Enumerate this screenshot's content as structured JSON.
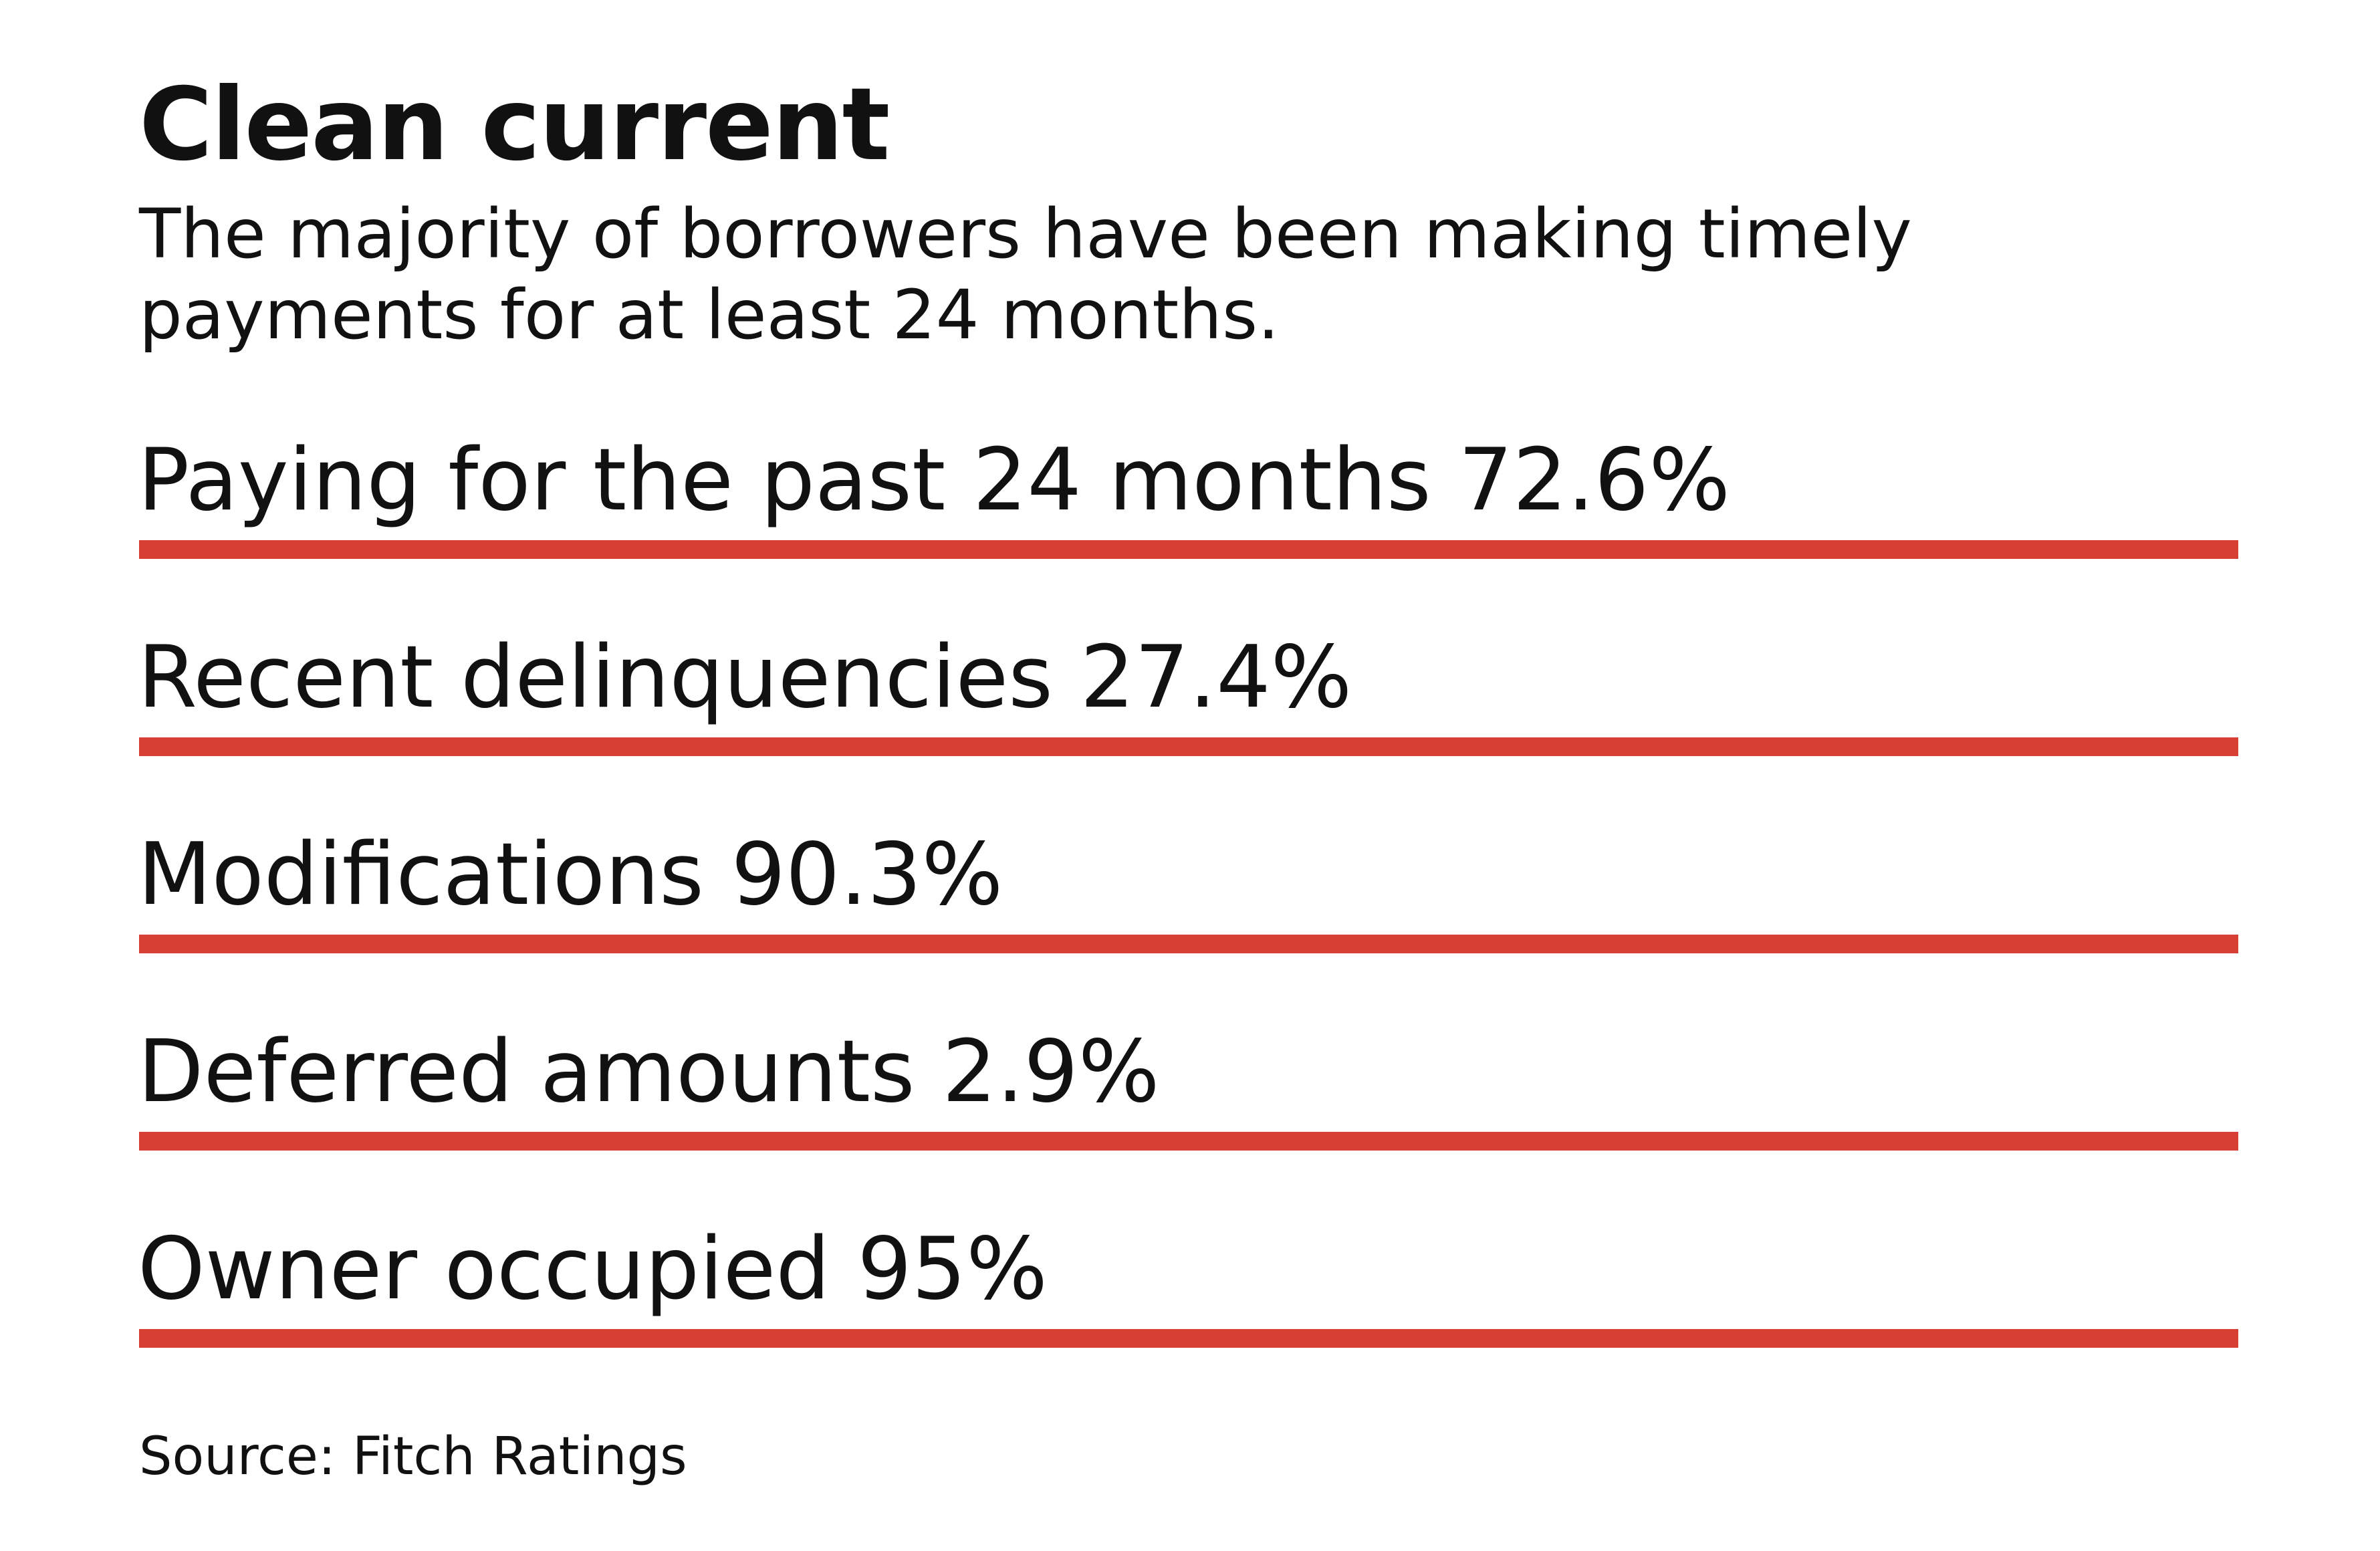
{
  "chart_data": {
    "type": "table",
    "title": "Clean current",
    "subtitle": "The majority of borrowers have been making timely payments for at least 24 months.",
    "categories": [
      "Paying for the past 24 months",
      "Recent delinquencies",
      "Modifications",
      "Deferred amounts",
      "Owner occupied"
    ],
    "values": [
      72.6,
      27.4,
      90.3,
      2.9,
      95
    ],
    "rows": [
      {
        "label": "Paying for the past 24 months 72.6%",
        "value": 72.6
      },
      {
        "label": "Recent delinquencies 27.4%",
        "value": 27.4
      },
      {
        "label": "Modifications 90.3%",
        "value": 90.3
      },
      {
        "label": "Deferred amounts 2.9%",
        "value": 2.9
      },
      {
        "label": "Owner occupied 95%",
        "value": 95
      }
    ],
    "source": "Source: Fitch Ratings"
  },
  "colors": {
    "accent": "#d63f32",
    "text": "#111111",
    "background": "#ffffff"
  }
}
